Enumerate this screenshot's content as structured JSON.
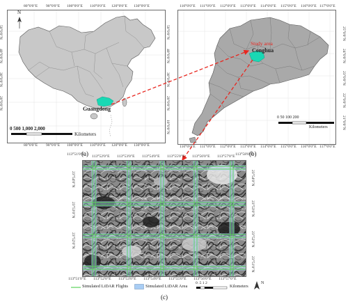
{
  "panel_a": {
    "top_ticks": [
      "80°0'0\"E",
      "90°0'0\"E",
      "100°0'0\"E",
      "110°0'0\"E",
      "120°0'0\"E",
      "130°0'0\"E"
    ],
    "bottom_ticks": [
      "80°0'0\"E",
      "90°0'0\"E",
      "100°0'0\"E",
      "110°0'0\"E",
      "120°0'0\"E",
      "130°0'0\"E"
    ],
    "right_ticks": [
      "50°0'0\"N",
      "40°0'0\"N",
      "30°0'0\"N",
      "20°0'0\"N",
      "10°0'0\"N"
    ],
    "north": "N",
    "province_label": "Guangdong",
    "scale_numbers": "0  500 1,000      2,000",
    "scale_unit": "Kilometers",
    "caption": "(a)"
  },
  "panel_b": {
    "top_ticks": [
      "110°0'0\"E",
      "111°0'0\"E",
      "112°0'0\"E",
      "113°0'0\"E",
      "114°0'0\"E",
      "115°0'0\"E",
      "116°0'0\"E",
      "117°0'0\"E"
    ],
    "bottom_ticks": [
      "110°0'0\"E",
      "111°0'0\"E",
      "112°0'0\"E",
      "113°0'0\"E",
      "114°0'0\"E",
      "115°0'0\"E",
      "116°0'0\"E",
      "117°0'0\"E"
    ],
    "right_ticks": [
      "25°0'0\"N",
      "24°0'0\"N",
      "23°0'0\"N",
      "22°0'0\"N",
      "21°0'0\"N"
    ],
    "study_area": "Study area",
    "county": "Conghua",
    "scale_numbers": "0    50   100        200",
    "scale_unit": "Kilometers",
    "caption": "(b)"
  },
  "panel_c": {
    "top_ticks": [
      "113°51'0\"E",
      "113°52'0\"E",
      "113°53'0\"E",
      "113°54'0\"E",
      "113°55'0\"E",
      "113°56'0\"E",
      "113°57'0\"E",
      "113°58'0\"E"
    ],
    "bottom_ticks": [
      "113°51'0\"E",
      "113°52'0\"E",
      "113°53'0\"E",
      "113°54'0\"E",
      "113°55'0\"E",
      "113°56'0\"E",
      "113°57'0\"E"
    ],
    "left_ticks": [
      "23°54'0\"N",
      "23°53'0\"N",
      "23°52'0\"N"
    ],
    "right_ticks": [
      "23°54'0\"N",
      "23°53'0\"N",
      "23°52'0\"N",
      "23°51'0\"N"
    ],
    "legend_flights": "Simulated LiDAR Flights",
    "legend_area": "Simulated LiDAR Area",
    "scale_numbers": "0  .5   1       2",
    "scale_unit": "Kilometers",
    "north": "N",
    "caption": "(c)"
  },
  "colors": {
    "land": "#c8c8c8",
    "land_b": "#a9a9a9",
    "border": "#555555",
    "highlight": "#19d8b4",
    "arrow": "#e8261f",
    "flight": "#5ad35a",
    "flight_area": "#a9cdf4",
    "study_text": "#e8261f"
  }
}
